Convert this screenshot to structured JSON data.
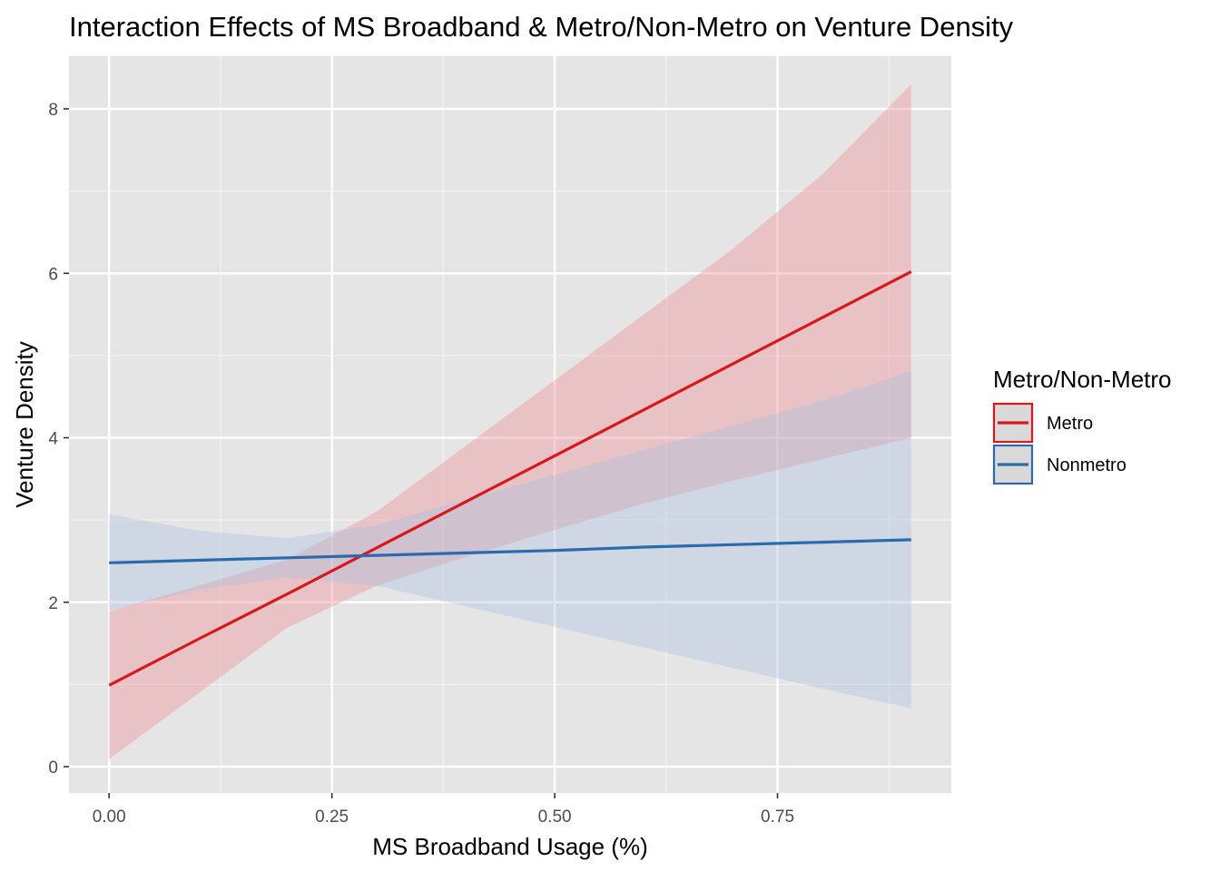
{
  "chart_data": {
    "type": "line",
    "title": "Interaction Effects of MS Broadband & Metro/Non-Metro on Venture Density",
    "xlabel": "MS Broadband Usage (%)",
    "ylabel": "Venture Density",
    "xlim": [
      -0.045,
      0.945
    ],
    "ylim": [
      -0.32,
      8.64
    ],
    "x_ticks": [
      0.0,
      0.25,
      0.5,
      0.75
    ],
    "x_tick_labels": [
      "0.00",
      "0.25",
      "0.50",
      "0.75"
    ],
    "x_minor_ticks": [
      0.125,
      0.375,
      0.625,
      0.875
    ],
    "y_ticks": [
      0,
      2,
      4,
      6,
      8
    ],
    "y_tick_labels": [
      "0",
      "2",
      "4",
      "6",
      "8"
    ],
    "y_minor_ticks": [
      1,
      3,
      5,
      7
    ],
    "grid": true,
    "legend": {
      "title": "Metro/Non-Metro",
      "position": "right"
    },
    "series": [
      {
        "name": "Metro",
        "color": "#d7191c",
        "fill_color": "#ef8a90",
        "x": [
          0.0,
          0.1,
          0.2,
          0.3,
          0.4,
          0.5,
          0.6,
          0.7,
          0.8,
          0.9
        ],
        "y": [
          0.99,
          1.55,
          2.1,
          2.66,
          3.22,
          3.78,
          4.34,
          4.9,
          5.46,
          6.02
        ],
        "lower": [
          0.09,
          0.89,
          1.69,
          2.2,
          2.55,
          2.88,
          3.2,
          3.48,
          3.74,
          4.0
        ],
        "upper": [
          1.89,
          2.2,
          2.52,
          3.1,
          3.9,
          4.7,
          5.5,
          6.3,
          7.2,
          8.3
        ]
      },
      {
        "name": "Nonmetro",
        "color": "#2b6aad",
        "fill_color": "#a8bfdf",
        "x": [
          0.0,
          0.1,
          0.2,
          0.3,
          0.4,
          0.5,
          0.6,
          0.7,
          0.8,
          0.9
        ],
        "y": [
          2.48,
          2.51,
          2.54,
          2.57,
          2.6,
          2.63,
          2.67,
          2.7,
          2.73,
          2.76
        ],
        "lower": [
          1.9,
          2.15,
          2.3,
          2.2,
          1.95,
          1.7,
          1.45,
          1.2,
          0.95,
          0.71
        ],
        "upper": [
          3.07,
          2.87,
          2.78,
          2.94,
          3.25,
          3.55,
          3.85,
          4.15,
          4.45,
          4.81
        ]
      }
    ]
  }
}
